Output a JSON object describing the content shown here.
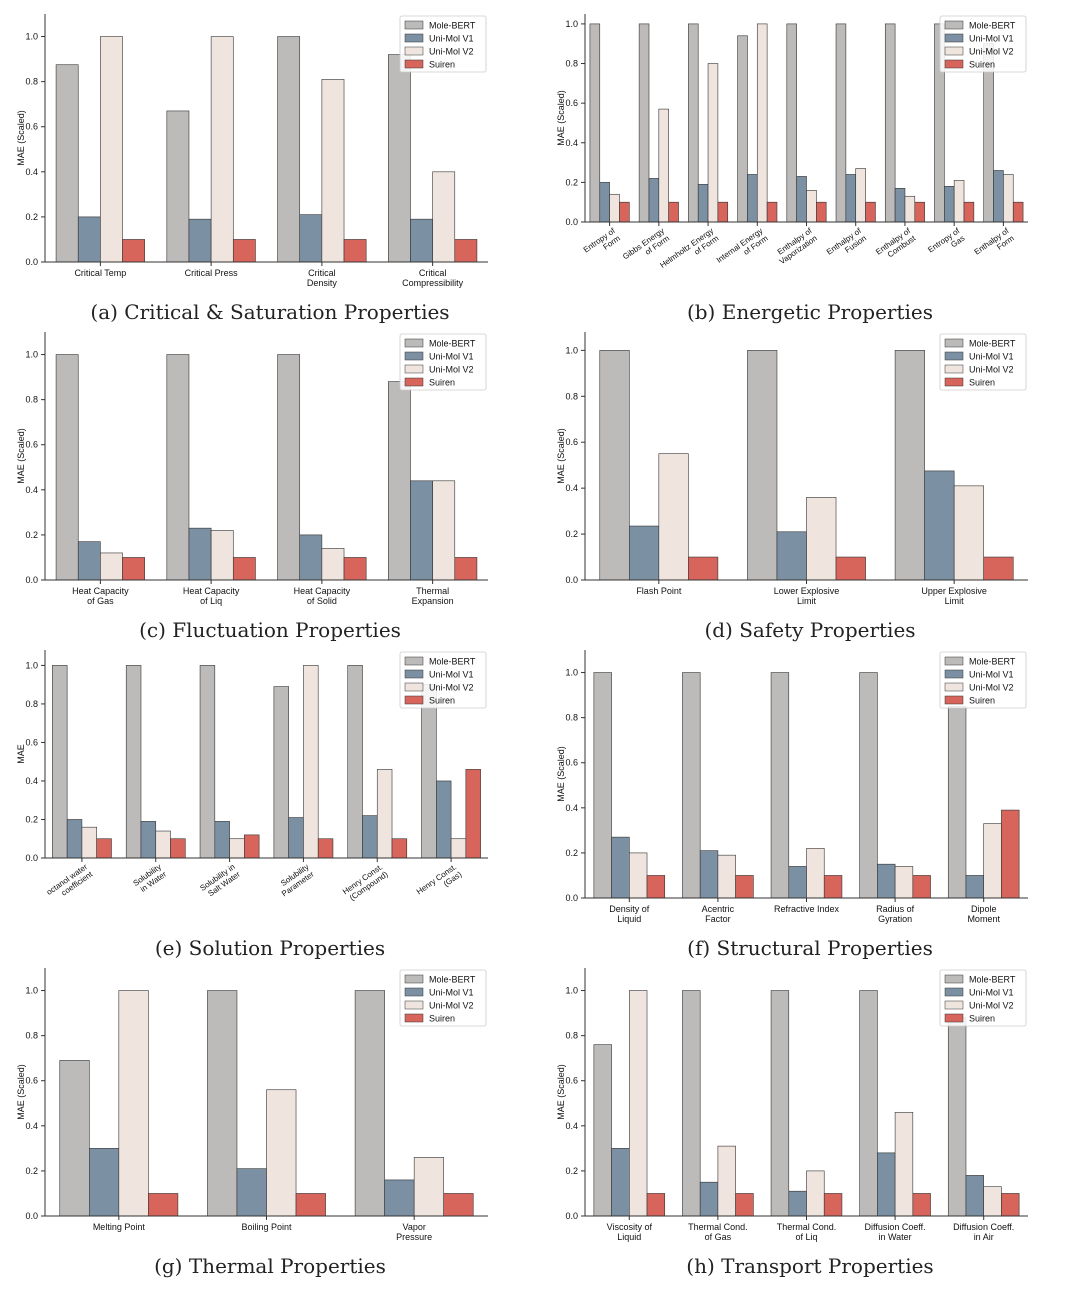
{
  "colors": {
    "Mole-BERT": "#bdbbb9",
    "Uni-Mol V1": "#7c90a3",
    "Uni-Mol V2": "#efe4de",
    "Suiren": "#d7655c",
    "edge": "#333333"
  },
  "legend_entries": [
    "Mole-BERT",
    "Uni-Mol V1",
    "Uni-Mol V2",
    "Suiren"
  ],
  "chart_data": [
    {
      "type": "bar",
      "caption": "(a) Critical & Saturation Properties",
      "ylabel": "MAE (Scaled)",
      "ylim": [
        0,
        1.1
      ],
      "yticks": [
        "0.0",
        "0.2",
        "0.4",
        "0.6",
        "0.8",
        "1.0"
      ],
      "categories": [
        "Critical Temp",
        "Critical Press",
        "Critical\nDensity",
        "Critical\nCompressibility"
      ],
      "rotate_ticks": false,
      "legend": "top-right",
      "series": [
        {
          "name": "Mole-BERT",
          "values": [
            0.875,
            0.67,
            1.0,
            0.92
          ]
        },
        {
          "name": "Uni-Mol V1",
          "values": [
            0.2,
            0.19,
            0.21,
            0.19
          ]
        },
        {
          "name": "Uni-Mol V2",
          "values": [
            1.0,
            1.0,
            0.81,
            0.4
          ]
        },
        {
          "name": "Suiren",
          "values": [
            0.1,
            0.1,
            0.1,
            0.1
          ]
        }
      ]
    },
    {
      "type": "bar",
      "caption": "(b) Energetic Properties",
      "ylabel": "MAE (Scaled)",
      "ylim": [
        0,
        1.05
      ],
      "yticks": [
        "0.0",
        "0.2",
        "0.4",
        "0.6",
        "0.8",
        "1.0"
      ],
      "categories": [
        "Entropy of\nForm",
        "Gibbs Energy\nof Form",
        "Helmholtz Energy\nof Form",
        "Internal Energy\nof Form",
        "Enthalpy of\nVaporization",
        "Enthalpy of\nFusion",
        "Enthalpy of\nCombust",
        "Entropy of\nGas",
        "Enthalpy of\nForm"
      ],
      "rotate_ticks": true,
      "legend": "top-right",
      "series": [
        {
          "name": "Mole-BERT",
          "values": [
            1.0,
            1.0,
            1.0,
            0.94,
            1.0,
            1.0,
            1.0,
            1.0,
            0.9
          ]
        },
        {
          "name": "Uni-Mol V1",
          "values": [
            0.2,
            0.22,
            0.19,
            0.24,
            0.23,
            0.24,
            0.17,
            0.18,
            0.26
          ]
        },
        {
          "name": "Uni-Mol V2",
          "values": [
            0.14,
            0.57,
            0.8,
            1.0,
            0.16,
            0.27,
            0.13,
            0.21,
            0.24
          ]
        },
        {
          "name": "Suiren",
          "values": [
            0.1,
            0.1,
            0.1,
            0.1,
            0.1,
            0.1,
            0.1,
            0.1,
            0.1
          ]
        }
      ]
    },
    {
      "type": "bar",
      "caption": "(c) Fluctuation Properties",
      "ylabel": "MAE (Scaled)",
      "ylim": [
        0,
        1.1
      ],
      "yticks": [
        "0.0",
        "0.2",
        "0.4",
        "0.6",
        "0.8",
        "1.0"
      ],
      "categories": [
        "Heat Capacity\nof Gas",
        "Heat Capacity\nof Liq",
        "Heat Capacity\nof Solid",
        "Thermal\nExpansion"
      ],
      "rotate_ticks": false,
      "legend": "top-right",
      "series": [
        {
          "name": "Mole-BERT",
          "values": [
            1.0,
            1.0,
            1.0,
            0.88
          ]
        },
        {
          "name": "Uni-Mol V1",
          "values": [
            0.17,
            0.23,
            0.2,
            0.44
          ]
        },
        {
          "name": "Uni-Mol V2",
          "values": [
            0.12,
            0.22,
            0.14,
            0.44
          ]
        },
        {
          "name": "Suiren",
          "values": [
            0.1,
            0.1,
            0.1,
            0.1
          ]
        }
      ]
    },
    {
      "type": "bar",
      "caption": "(d) Safety Properties",
      "ylabel": "MAE (Scaled)",
      "ylim": [
        0,
        1.08
      ],
      "yticks": [
        "0.0",
        "0.2",
        "0.4",
        "0.6",
        "0.8",
        "1.0"
      ],
      "categories": [
        "Flash Point",
        "Lower Explosive\nLimit",
        "Upper Explosive\nLimit"
      ],
      "rotate_ticks": false,
      "legend": "top-right",
      "series": [
        {
          "name": "Mole-BERT",
          "values": [
            1.0,
            1.0,
            1.0
          ]
        },
        {
          "name": "Uni-Mol V1",
          "values": [
            0.235,
            0.21,
            0.475
          ]
        },
        {
          "name": "Uni-Mol V2",
          "values": [
            0.55,
            0.36,
            0.41
          ]
        },
        {
          "name": "Suiren",
          "values": [
            0.1,
            0.1,
            0.1
          ]
        }
      ]
    },
    {
      "type": "bar",
      "caption": "(e) Solution Properties",
      "ylabel": "MAE",
      "ylim": [
        0,
        1.08
      ],
      "yticks": [
        "0.0",
        "0.2",
        "0.4",
        "0.6",
        "0.8",
        "1.0"
      ],
      "categories": [
        "octanol water\ncoefficient",
        "Solubility\nin Water",
        "Solubility in\nSalt Water",
        "Solubility\nParameter",
        "Henry Const.\n(Compound)",
        "Henry Const.\n(Gas)"
      ],
      "rotate_ticks": true,
      "legend": "top-right",
      "series": [
        {
          "name": "Mole-BERT",
          "values": [
            1.0,
            1.0,
            1.0,
            0.89,
            1.0,
            0.9
          ]
        },
        {
          "name": "Uni-Mol V1",
          "values": [
            0.2,
            0.19,
            0.19,
            0.21,
            0.22,
            0.4
          ]
        },
        {
          "name": "Uni-Mol V2",
          "values": [
            0.16,
            0.14,
            0.1,
            1.0,
            0.46,
            0.1
          ]
        },
        {
          "name": "Suiren",
          "values": [
            0.1,
            0.1,
            0.12,
            0.1,
            0.1,
            0.46
          ]
        }
      ]
    },
    {
      "type": "bar",
      "caption": "(f) Structural Properties",
      "ylabel": "MAE (Scaled)",
      "ylim": [
        0,
        1.1
      ],
      "yticks": [
        "0.0",
        "0.2",
        "0.4",
        "0.6",
        "0.8",
        "1.0"
      ],
      "categories": [
        "Density of\nLiquid",
        "Acentric\nFactor",
        "Refractive Index",
        "Radius of\nGyration",
        "Dipole\nMoment"
      ],
      "rotate_ticks": false,
      "legend": "top-right",
      "series": [
        {
          "name": "Mole-BERT",
          "values": [
            1.0,
            1.0,
            1.0,
            1.0,
            0.85
          ]
        },
        {
          "name": "Uni-Mol V1",
          "values": [
            0.27,
            0.21,
            0.14,
            0.15,
            0.1
          ]
        },
        {
          "name": "Uni-Mol V2",
          "values": [
            0.2,
            0.19,
            0.22,
            0.14,
            0.33
          ]
        },
        {
          "name": "Suiren",
          "values": [
            0.1,
            0.1,
            0.1,
            0.1,
            0.39
          ]
        }
      ]
    },
    {
      "type": "bar",
      "caption": "(g) Thermal Properties",
      "ylabel": "MAE (Scaled)",
      "ylim": [
        0,
        1.1
      ],
      "yticks": [
        "0.0",
        "0.2",
        "0.4",
        "0.6",
        "0.8",
        "1.0"
      ],
      "categories": [
        "Melting Point",
        "Boiling Point",
        "Vapor\nPressure"
      ],
      "rotate_ticks": false,
      "legend": "top-right",
      "series": [
        {
          "name": "Mole-BERT",
          "values": [
            0.69,
            1.0,
            1.0
          ]
        },
        {
          "name": "Uni-Mol V1",
          "values": [
            0.3,
            0.21,
            0.16
          ]
        },
        {
          "name": "Uni-Mol V2",
          "values": [
            1.0,
            0.56,
            0.26
          ]
        },
        {
          "name": "Suiren",
          "values": [
            0.1,
            0.1,
            0.1
          ]
        }
      ]
    },
    {
      "type": "bar",
      "caption": "(h) Transport Properties",
      "ylabel": "MAE (Scaled)",
      "ylim": [
        0,
        1.1
      ],
      "yticks": [
        "0.0",
        "0.2",
        "0.4",
        "0.6",
        "0.8",
        "1.0"
      ],
      "categories": [
        "Viscosity of\nLiquid",
        "Thermal Cond.\nof Gas",
        "Thermal Cond.\nof Liq",
        "Diffusion Coeff.\nin Water",
        "Diffusion Coeff.\nin Air"
      ],
      "rotate_ticks": false,
      "legend": "top-right",
      "series": [
        {
          "name": "Mole-BERT",
          "values": [
            0.76,
            1.0,
            1.0,
            1.0,
            0.88
          ]
        },
        {
          "name": "Uni-Mol V1",
          "values": [
            0.3,
            0.15,
            0.11,
            0.28,
            0.18
          ]
        },
        {
          "name": "Uni-Mol V2",
          "values": [
            1.0,
            0.31,
            0.2,
            0.46,
            0.13
          ]
        },
        {
          "name": "Suiren",
          "values": [
            0.1,
            0.1,
            0.1,
            0.1,
            0.1
          ]
        }
      ]
    }
  ]
}
